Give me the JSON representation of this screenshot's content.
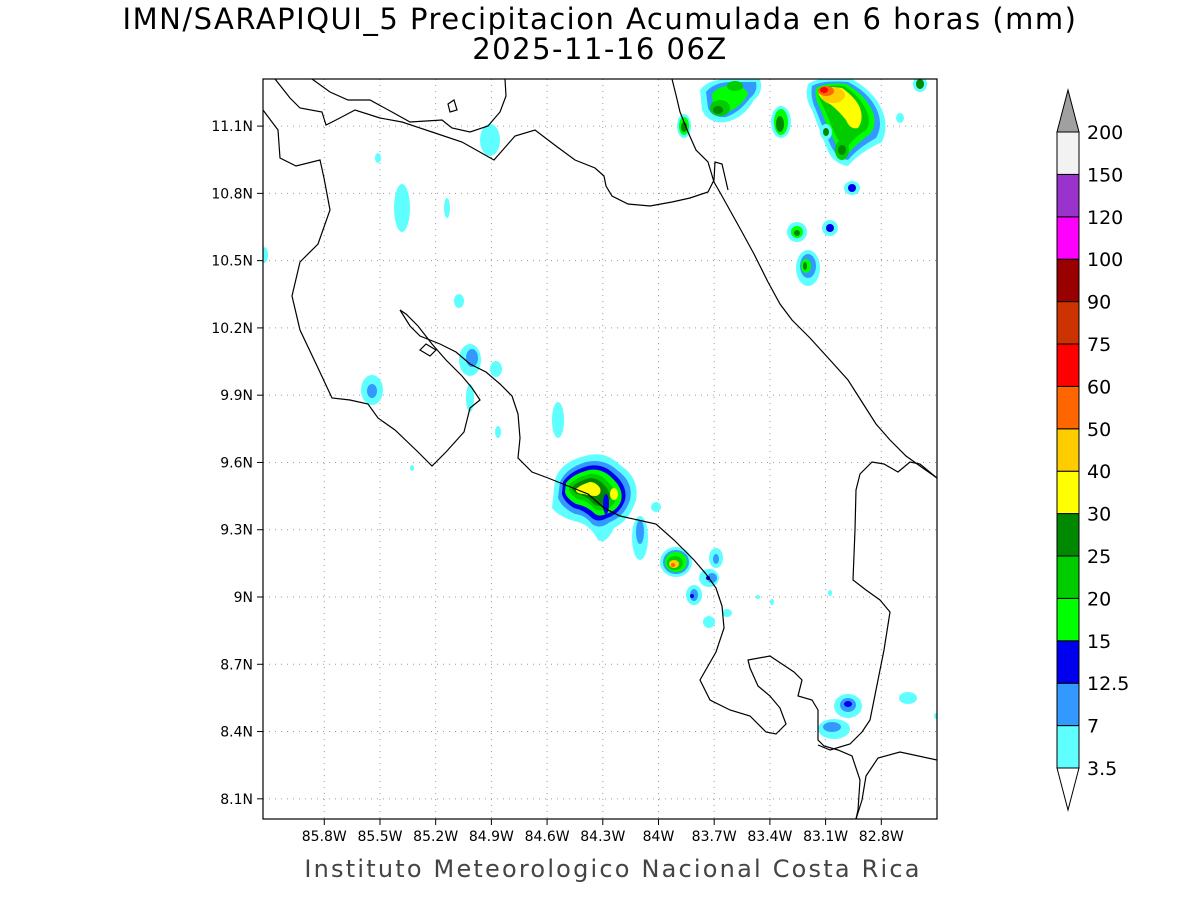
{
  "header": {
    "title": "IMN/SARAPIQUI_5 Precipitacion Acumulada en 6 horas (mm)",
    "subtitle": "2025-11-16 06Z"
  },
  "footer": {
    "credit": "Instituto Meteorologico Nacional Costa Rica"
  },
  "map": {
    "lon_range": [
      -86.13,
      -82.5
    ],
    "lat_range": [
      8.01,
      11.31
    ],
    "lon_ticks": [
      "85.8W",
      "85.5W",
      "85.2W",
      "84.9W",
      "84.6W",
      "84.3W",
      "84W",
      "83.7W",
      "83.4W",
      "83.1W",
      "82.8W"
    ],
    "lat_ticks": [
      "11.1N",
      "10.8N",
      "10.5N",
      "10.2N",
      "9.9N",
      "9.6N",
      "9.3N",
      "9N",
      "8.7N",
      "8.4N",
      "8.1N"
    ],
    "grid": "dotted"
  },
  "colorbar": {
    "labels": [
      "3.5",
      "7",
      "12.5",
      "15",
      "20",
      "25",
      "30",
      "40",
      "50",
      "60",
      "75",
      "90",
      "100",
      "120",
      "150",
      "200"
    ],
    "colors": [
      "#ffffff",
      "#5fffff",
      "#3399ff",
      "#0000ee",
      "#00ff00",
      "#00cc00",
      "#008800",
      "#ffff00",
      "#ffcc00",
      "#ff6600",
      "#ff0000",
      "#cc3300",
      "#990000",
      "#ff00ff",
      "#9933cc",
      "#f2f2f2",
      "#a0a0a0"
    ]
  }
}
